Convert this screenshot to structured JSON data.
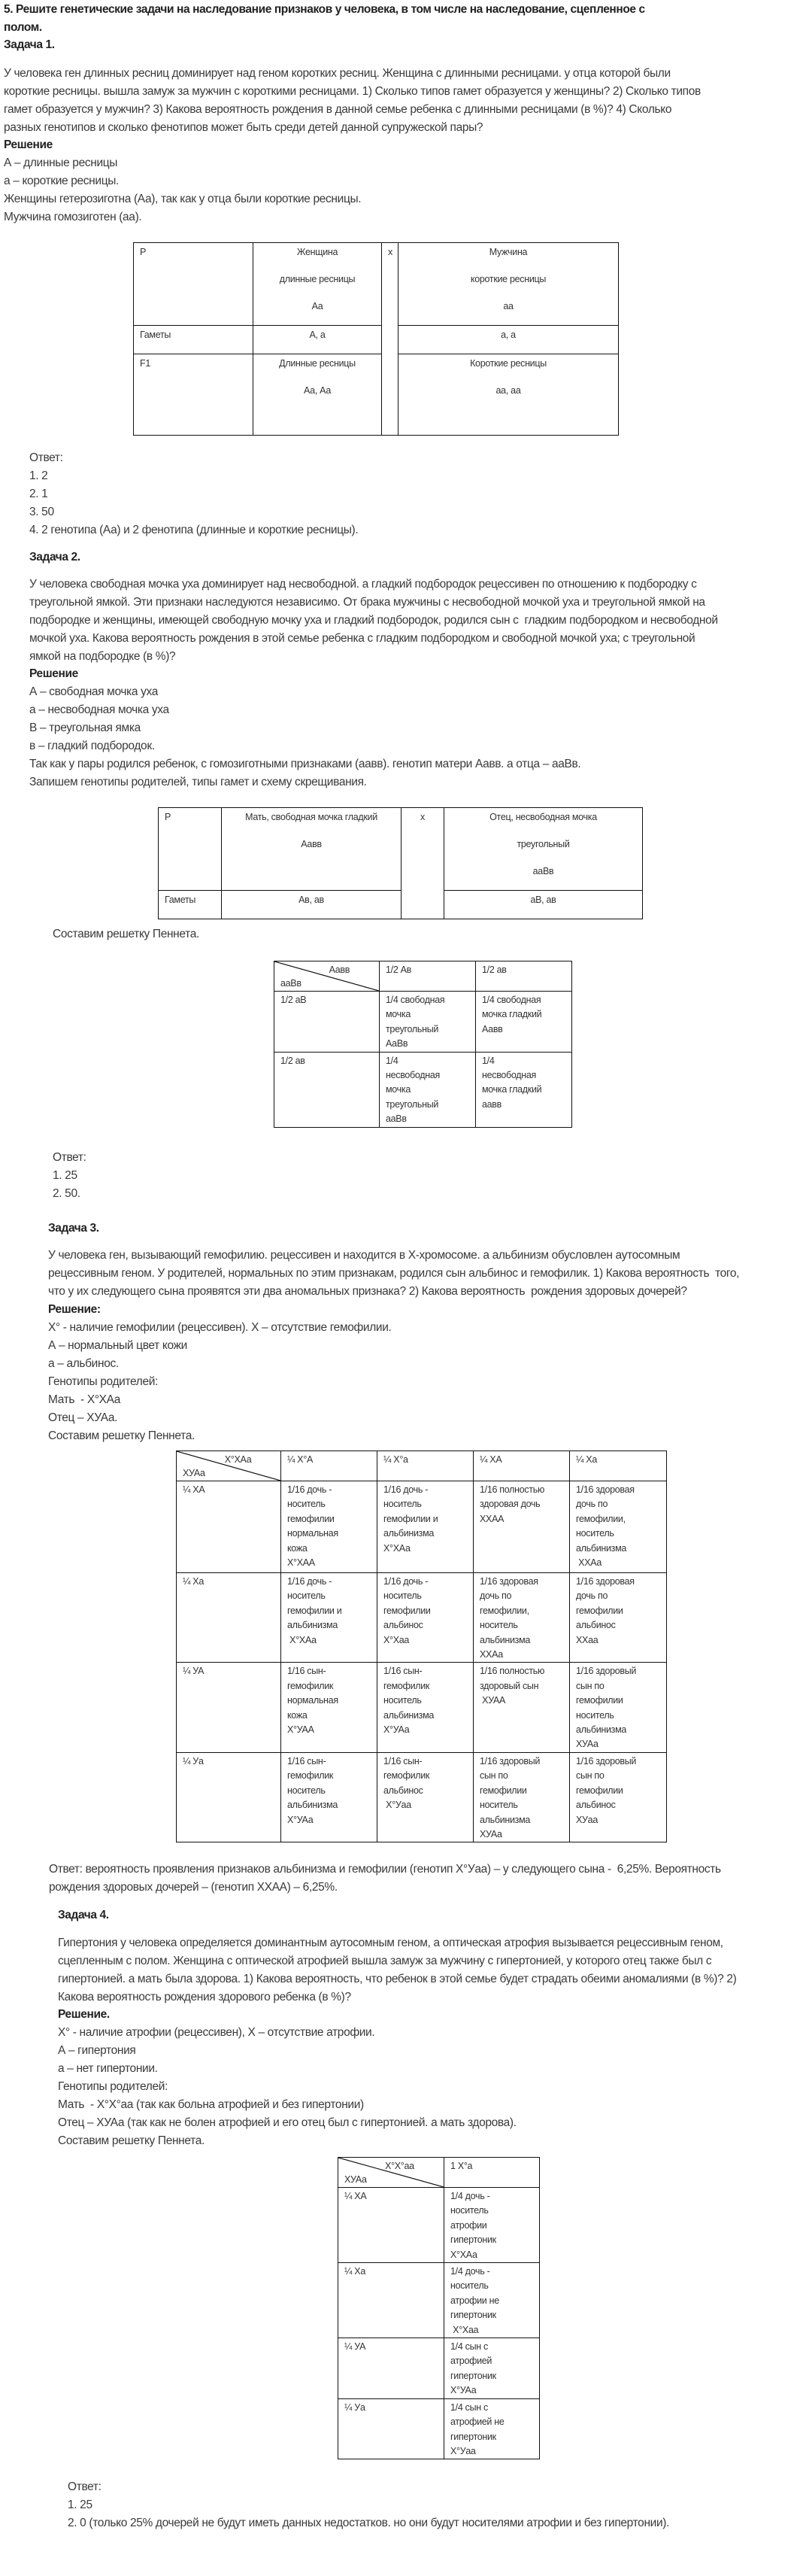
{
  "blocks": [
    {
      "id": "title",
      "kind": "heading",
      "lines": [
        "5. Решите генетические задачи на наследование признаков у человека, в том числе на наследование, сцепленное с",
        "полом."
      ]
    },
    {
      "id": "task1-heading",
      "kind": "heading",
      "lines": [
        "Задача 1."
      ]
    },
    {
      "id": "task1-condition",
      "kind": "text",
      "lines": [
        "У человека ген длинных ресниц доминирует над геном коротких ресниц. Женщина с длинными ресницами. у отца которой были",
        "короткие ресницы. вышла замуж за мужчин с короткими ресницами. 1) Сколько типов гамет образуется у женщины? 2) Сколько типов",
        "гамет образуется у мужчин? 3) Какова вероятность рождения в данной семье ребенка с длинными ресницами (в %)? 4) Сколько",
        "разных генотипов и сколько фенотипов может быть среди детей данной супружеской пары?"
      ]
    },
    {
      "id": "task1-solution-label",
      "kind": "heading",
      "lines": [
        "Решение"
      ]
    },
    {
      "id": "task1-notes",
      "kind": "text",
      "lines": [
        "А – длинные ресницы",
        "а – короткие ресницы.",
        "Женщины гетерозиготна (Аа), так как у отца были короткие ресницы.",
        "Мужчина гомозиготен (аа)."
      ]
    },
    {
      "id": "task1-cross-table",
      "kind": "table",
      "style": "spaced",
      "rows": [
        [
          {
            "lines": [
              "P"
            ]
          },
          {
            "lines": [
              "Женщина",
              "длинные ресницы",
              "Аа"
            ],
            "center": true
          },
          {
            "lines": [
              "x"
            ],
            "rowspan": 3,
            "center": true
          },
          {
            "lines": [
              "Мужчина",
              "короткие ресницы",
              "аа"
            ],
            "center": true
          }
        ],
        [
          {
            "lines": [
              "Гаметы"
            ]
          },
          {
            "lines": [
              "А, а"
            ],
            "center": true
          },
          {
            "lines": [
              "а, а"
            ],
            "center": true
          }
        ],
        [
          {
            "lines": [
              "F1"
            ]
          },
          {
            "lines": [
              "Длинные ресницы",
              "Аа, Аа"
            ],
            "center": true
          },
          {
            "lines": [
              "Короткие ресницы",
              "аа, аа"
            ],
            "center": true
          }
        ]
      ]
    },
    {
      "id": "task1-answer",
      "kind": "text",
      "lines": [
        "Ответ:",
        "1. 2",
        "2. 1",
        "3. 50",
        "4. 2 генотипа (Аа) и 2 фенотипа (длинные и короткие ресницы)."
      ]
    },
    {
      "id": "task2-heading",
      "kind": "heading",
      "lines": [
        "Задача 2."
      ]
    },
    {
      "id": "task2-condition",
      "kind": "text",
      "lines": [
        "У человека свободная мочка уха доминирует над несвободной. а гладкий подбородок рецессивен по отношению к подбородку с",
        "треугольной ямкой. Эти признаки наследуются независимо. От брака мужчины с несвободной мочкой уха и треугольной ямкой на",
        "подбородке и женщины, имеющей свободную мочку уха и гладкий подбородок, родился сын с  гладким подбородком и несвободной",
        "мочкой уха. Какова вероятность рождения в этой семье ребенка с гладким подбородком и свободной мочкой уха; с треугольной",
        "ямкой на подбородке (в %)?"
      ]
    },
    {
      "id": "task2-solution-label",
      "kind": "heading",
      "lines": [
        "Решение"
      ]
    },
    {
      "id": "task2-notes",
      "kind": "text",
      "lines": [
        "А – свободная мочка уха",
        "а – несвободная мочка уха",
        "В – треугольная ямка",
        "в – гладкий подбородок.",
        "Так как у пары родился ребенок, с гомозиготными признаками (аавв). генотип матери Аавв. а отца – ааВв.",
        "Запишем генотипы родителей, типы гамет и схему скрещивания."
      ]
    },
    {
      "id": "task2-cross-table",
      "kind": "table",
      "style": "spaced",
      "rows": [
        [
          {
            "lines": [
              "P"
            ]
          },
          {
            "lines": [
              "Мать, свободная мочка гладкий",
              "Аавв"
            ],
            "center": true
          },
          {
            "lines": [
              "x"
            ],
            "rowspan": 2,
            "center": true
          },
          {
            "lines": [
              "Отец, несвободная мочка",
              "треугольный",
              "ааВв"
            ],
            "center": true
          }
        ],
        [
          {
            "lines": [
              "Гаметы"
            ]
          },
          {
            "lines": [
              "Ав, ав"
            ],
            "center": true
          },
          {
            "lines": [
              "аВ, ав"
            ],
            "center": true
          }
        ]
      ]
    },
    {
      "id": "task2-punnett-caption",
      "kind": "text",
      "lines": [
        "Составим решетку Пеннета."
      ]
    },
    {
      "id": "task2-punnett-table",
      "kind": "table",
      "style": "tight",
      "rows": [
        [
          {
            "diag": [
              "Аавв",
              "ааВв"
            ]
          },
          {
            "lines": [
              "1/2 Ав"
            ]
          },
          {
            "lines": [
              "1/2 ав"
            ]
          }
        ],
        [
          {
            "lines": [
              "1/2 аВ"
            ]
          },
          {
            "lines": [
              "1/4 свободная",
              "мочка",
              "треугольный",
              "АаВв"
            ]
          },
          {
            "lines": [
              "1/4 свободная",
              "мочка гладкий",
              "Аавв"
            ]
          }
        ],
        [
          {
            "lines": [
              "1/2 ав"
            ]
          },
          {
            "lines": [
              "1/4",
              "несвободная",
              "мочка",
              "треугольный",
              "ааВв"
            ]
          },
          {
            "lines": [
              "1/4",
              "несвободная",
              "мочка гладкий",
              "аавв"
            ]
          }
        ]
      ]
    },
    {
      "id": "task2-answer",
      "kind": "text",
      "lines": [
        "Ответ:",
        "1. 25",
        "2. 50."
      ]
    },
    {
      "id": "task3-heading",
      "kind": "heading",
      "lines": [
        "Задача 3."
      ]
    },
    {
      "id": "task3-condition",
      "kind": "text",
      "lines": [
        "У человека ген, вызывающий гемофилию. рецессивен и находится в Х-хромосоме. а альбинизм обусловлен аутосомным",
        "рецессивным геном. У родителей, нормальных по этим признакам, родился сын альбинос и гемофилик. 1) Какова вероятность  того,",
        "что у их следующего сына проявятся эти два аномальных признака? 2) Какова вероятность  рождения здоровых дочерей?"
      ]
    },
    {
      "id": "task3-solution-label",
      "kind": "heading",
      "lines": [
        "Решение:"
      ]
    },
    {
      "id": "task3-notes",
      "kind": "text",
      "lines": [
        "Х° - наличие гемофилии (рецессивен). Х – отсутствие гемофилии.",
        "А – нормальный цвет кожи",
        "а – альбинос.",
        "Генотипы родителей:",
        "Мать  - Х°ХАа",
        "Отец – ХУАа.",
        "Составим решетку Пеннета."
      ]
    },
    {
      "id": "task3-punnett-table",
      "kind": "table",
      "style": "tight",
      "rows": [
        [
          {
            "diag": [
              "Х°ХАа",
              "ХУАа"
            ]
          },
          {
            "lines": [
              "¼ Х°А"
            ]
          },
          {
            "lines": [
              "¼ Х°а"
            ]
          },
          {
            "lines": [
              "¼ ХА"
            ]
          },
          {
            "lines": [
              "¼ Ха"
            ]
          }
        ],
        [
          {
            "lines": [
              "¼ ХА"
            ]
          },
          {
            "lines": [
              "1/16 дочь -",
              "носитель",
              "гемофилии",
              "нормальная",
              "кожа",
              "Х°ХАА"
            ]
          },
          {
            "lines": [
              "1/16 дочь -",
              "носитель",
              "гемофилии и",
              "альбинизма",
              "Х°ХАа"
            ]
          },
          {
            "lines": [
              "1/16 полностью",
              "здоровая дочь",
              "ХХАА"
            ]
          },
          {
            "lines": [
              "1/16 здоровая",
              "дочь по",
              "гемофилии,",
              "носитель",
              "альбинизма",
              " ХХАа"
            ]
          }
        ],
        [
          {
            "lines": [
              "¼ Ха"
            ]
          },
          {
            "lines": [
              "1/16 дочь -",
              "носитель",
              "гемофилии и",
              "альбинизма",
              " Х°ХАа"
            ]
          },
          {
            "lines": [
              "1/16 дочь -",
              "носитель",
              "гемофилии",
              "альбинос",
              "Х°Хаа"
            ]
          },
          {
            "lines": [
              "1/16 здоровая",
              "дочь по",
              "гемофилии,",
              "носитель",
              "альбинизма",
              "ХХАа"
            ]
          },
          {
            "lines": [
              "1/16 здоровая",
              "дочь по",
              "гемофилии",
              "альбинос",
              "ХХаа"
            ]
          }
        ],
        [
          {
            "lines": [
              "¼ УА"
            ]
          },
          {
            "lines": [
              "1/16 сын-",
              "гемофилик",
              "нормальная",
              "кожа",
              "Х°УАА"
            ]
          },
          {
            "lines": [
              "1/16 сын-",
              "гемофилик",
              "носитель",
              "альбинизма",
              "Х°УАа"
            ]
          },
          {
            "lines": [
              "1/16 полностью",
              "здоровый сын",
              " ХУАА"
            ]
          },
          {
            "lines": [
              "1/16 здоровый",
              "сын по",
              "гемофилии",
              "носитель",
              "альбинизма",
              "ХУАа"
            ]
          }
        ],
        [
          {
            "lines": [
              "¼ Уа"
            ]
          },
          {
            "lines": [
              "1/16 сын-",
              "гемофилик",
              "носитель",
              "альбинизма",
              "Х°УАа"
            ]
          },
          {
            "lines": [
              "1/16 сын-",
              "гемофилик",
              "альбинос",
              " Х°Уаа"
            ]
          },
          {
            "lines": [
              "1/16 здоровый",
              "сын по",
              "гемофилии",
              "носитель",
              "альбинизма",
              "ХУАа"
            ]
          },
          {
            "lines": [
              "1/16 здоровый",
              "сын по",
              "гемофилии",
              "альбинос",
              "ХУаа"
            ]
          }
        ]
      ]
    },
    {
      "id": "task3-answer",
      "kind": "text",
      "lines": [
        "Ответ: вероятность проявления признаков альбинизма и гемофилии (генотип Х°Уаа) – у следующего сына -  6,25%. Вероятность",
        "рождения здоровых дочерей – (генотип ХХАА) – 6,25%."
      ]
    },
    {
      "id": "task4-heading",
      "kind": "heading",
      "lines": [
        "Задача 4."
      ]
    },
    {
      "id": "task4-condition",
      "kind": "text",
      "lines": [
        "Гипертония у человека определяется доминантным аутосомным геном, а оптическая атрофия вызывается рецессивным геном,",
        "сцепленным с полом. Женщина с оптической атрофией вышла замуж за мужчину с гипертонией, у которого отец также был с",
        "гипертонией. а мать была здорова. 1) Какова вероятность, что ребенок в этой семье будет страдать обеими аномалиями (в %)? 2)",
        "Какова вероятность рождения здорового ребенка (в %)?"
      ]
    },
    {
      "id": "task4-solution-label",
      "kind": "heading",
      "lines": [
        "Решение."
      ]
    },
    {
      "id": "task4-notes",
      "kind": "text",
      "lines": [
        "Х° - наличие атрофии (рецессивен), Х – отсутствие атрофии.",
        "А – гипертония",
        "а – нет гипертонии.",
        "Генотипы родителей:",
        "Мать  - Х°Х°аа (так как больна атрофией и без гипертонии)",
        "Отец – ХУАа (так как не болен атрофией и его отец был с гипертонией. а мать здорова).",
        "Составим решетку Пеннета."
      ]
    },
    {
      "id": "task4-punnett-table",
      "kind": "table",
      "style": "tight",
      "rows": [
        [
          {
            "diag": [
              "Х°Х°аа",
              "ХУАа"
            ]
          },
          {
            "lines": [
              "1 Х°а"
            ]
          }
        ],
        [
          {
            "lines": [
              "¼ ХА"
            ]
          },
          {
            "lines": [
              "1/4 дочь -",
              "носитель",
              "атрофии",
              "гипертоник",
              "Х°ХАа"
            ]
          }
        ],
        [
          {
            "lines": [
              "¼ Ха"
            ]
          },
          {
            "lines": [
              "1/4 дочь -",
              "носитель",
              "атрофии не",
              "гипертоник",
              " Х°Хаа"
            ]
          }
        ],
        [
          {
            "lines": [
              "¼ УА"
            ]
          },
          {
            "lines": [
              "1/4 сын с",
              "атрофией",
              "гипертоник",
              "Х°УАа"
            ]
          }
        ],
        [
          {
            "lines": [
              "¼ Уа"
            ]
          },
          {
            "lines": [
              "1/4 сын с",
              "атрофией не",
              "гипертоник",
              "Х°Уаа"
            ]
          }
        ]
      ]
    },
    {
      "id": "task4-answer",
      "kind": "text",
      "lines": [
        "Ответ:",
        "1. 25",
        "2. 0 (только 25% дочерей не будут иметь данных недостатков. но они будут носителями атрофии и без гипертонии)."
      ]
    }
  ]
}
